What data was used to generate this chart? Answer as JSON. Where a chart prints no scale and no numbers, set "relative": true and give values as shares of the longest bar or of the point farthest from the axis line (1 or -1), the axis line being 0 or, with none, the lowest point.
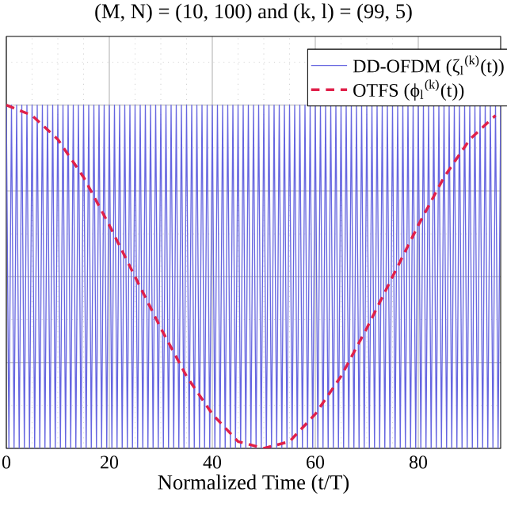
{
  "chart_data": {
    "type": "line",
    "title": "(M, N) = (10, 100) and (k, l) = (99, 5)",
    "xlabel": "Normalized Time (t/T)",
    "relative": true,
    "xlim": [
      0,
      96
    ],
    "xticks": [
      0,
      20,
      40,
      60,
      80
    ],
    "grid": true,
    "legend": "top right",
    "marker": "none",
    "series": [
      {
        "name": "DD-OFDM (ζ$_{l}$$^{(k)}$(t))",
        "color": "#6666e0",
        "line_style": "solid",
        "x": [
          0,
          0.5,
          1,
          1.5,
          2,
          2.5,
          3,
          3.5,
          4,
          4.5,
          5,
          5.5,
          6,
          6.5,
          7,
          7.5,
          8,
          8.5,
          9,
          9.5,
          10,
          10.5,
          11,
          11.5,
          12,
          12.5,
          13,
          13.5,
          14,
          14.5,
          15,
          15.5,
          16,
          16.5,
          17,
          17.5,
          18,
          18.5,
          19,
          19.5,
          20,
          20.5,
          21,
          21.5,
          22,
          22.5,
          23,
          23.5,
          24,
          24.5,
          25,
          25.5,
          26,
          26.5,
          27,
          27.5,
          28,
          28.5,
          29,
          29.5,
          30,
          30.5,
          31,
          31.5,
          32,
          32.5,
          33,
          33.5,
          34,
          34.5,
          35,
          35.5,
          36,
          36.5,
          37,
          37.5,
          38,
          38.5,
          39,
          39.5,
          40,
          40.5,
          41,
          41.5,
          42,
          42.5,
          43,
          43.5,
          44,
          44.5,
          45,
          45.5,
          46,
          46.5,
          47,
          47.5,
          48,
          48.5,
          49,
          49.5,
          50,
          50.5,
          51,
          51.5,
          52,
          52.5,
          53,
          53.5,
          54,
          54.5,
          55,
          55.5,
          56,
          56.5,
          57,
          57.5,
          58,
          58.5,
          59,
          59.5,
          60,
          60.5,
          61,
          61.5,
          62,
          62.5,
          63,
          63.5,
          64,
          64.5,
          65,
          65.5,
          66,
          66.5,
          67,
          67.5,
          68,
          68.5,
          69,
          69.5,
          70,
          70.5,
          71,
          71.5,
          72,
          72.5,
          73,
          73.5,
          74,
          74.5,
          75,
          75.5,
          76,
          76.5,
          77,
          77.5,
          78,
          78.5,
          79,
          79.5,
          80,
          80.5,
          81,
          81.5,
          82,
          82.5,
          83,
          83.5,
          84,
          84.5,
          85,
          85.5,
          86,
          86.5,
          87,
          87.5,
          88,
          88.5,
          89,
          89.5,
          90,
          90.5,
          91,
          91.5,
          92,
          92.5,
          93,
          93.5,
          94,
          94.5,
          95,
          95.5,
          96
        ],
        "values": [
          1,
          0,
          1,
          0,
          1,
          0,
          1,
          0,
          1,
          0,
          1,
          0,
          1,
          0,
          1,
          0,
          1,
          0,
          1,
          0,
          1,
          0,
          1,
          0,
          1,
          0,
          1,
          0,
          1,
          0,
          1,
          0,
          1,
          0,
          1,
          0,
          1,
          0,
          1,
          0,
          1,
          0,
          1,
          0,
          1,
          0,
          1,
          0,
          1,
          0,
          1,
          0,
          1,
          0,
          1,
          0,
          1,
          0,
          1,
          0,
          1,
          0,
          1,
          0,
          1,
          0,
          1,
          0,
          1,
          0,
          1,
          0,
          1,
          0,
          1,
          0,
          1,
          0,
          1,
          0,
          1,
          0,
          1,
          0,
          1,
          0,
          1,
          0,
          1,
          0,
          1,
          0,
          1,
          0,
          1,
          0,
          1,
          0,
          1,
          0,
          1,
          0,
          1,
          0,
          1,
          0,
          1,
          0,
          1,
          0,
          1,
          0,
          1,
          0,
          1,
          0,
          1,
          0,
          1,
          0,
          1,
          0,
          1,
          0,
          1,
          0,
          1,
          0,
          1,
          0,
          1,
          0,
          1,
          0,
          1,
          0,
          1,
          0,
          1,
          0,
          1,
          0,
          1,
          0,
          1,
          0,
          1,
          0,
          1,
          0,
          1,
          0,
          1,
          0,
          1,
          0,
          1,
          0,
          1,
          0,
          1,
          0,
          1,
          0,
          1,
          0,
          1,
          0,
          1,
          0,
          1,
          0,
          1,
          0,
          1,
          0,
          1,
          0,
          1,
          0,
          1,
          0,
          1,
          0,
          1,
          0,
          1,
          0,
          1,
          0,
          1,
          0,
          1
        ]
      },
      {
        "name": "OTFS (ϕ$_{l}$$^{(k)}$(t))",
        "color": "#e0204a",
        "line_style": "dashed",
        "x": [
          0,
          5,
          10,
          15,
          20,
          25,
          30,
          35,
          40,
          45,
          50,
          55,
          60,
          65,
          70,
          75,
          80,
          85,
          90,
          95
        ],
        "values": [
          1,
          0.97,
          0.9,
          0.79,
          0.65,
          0.5,
          0.35,
          0.21,
          0.1,
          0.02,
          0,
          0.02,
          0.1,
          0.21,
          0.35,
          0.5,
          0.65,
          0.79,
          0.9,
          0.97
        ]
      }
    ]
  }
}
